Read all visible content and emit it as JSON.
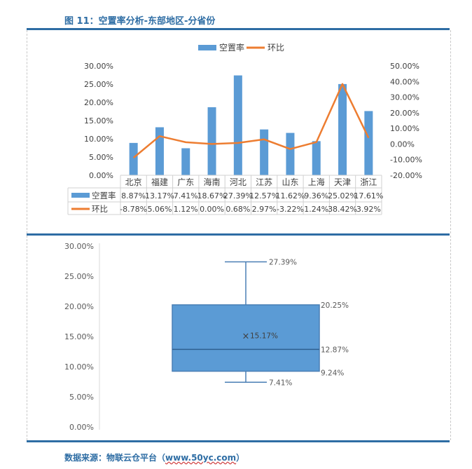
{
  "figure": {
    "title": "图 11：空置率分析-东部地区-分省份",
    "source_prefix": "数据来源：物联云仓平台（",
    "source_url": "www.50yc.com",
    "source_suffix": "）"
  },
  "colors": {
    "bar": "#5b9bd5",
    "line": "#ed7d31",
    "accent": "#2e6da4"
  },
  "chart_data": [
    {
      "type": "bar",
      "categories": [
        "北京",
        "福建",
        "广东",
        "海南",
        "河北",
        "江苏",
        "山东",
        "上海",
        "天津",
        "浙江"
      ],
      "series": [
        {
          "name": "空置率",
          "type": "bar",
          "axis": "left",
          "values": [
            8.87,
            13.17,
            7.41,
            18.67,
            27.39,
            12.57,
            11.62,
            9.36,
            25.02,
            17.61
          ],
          "labels": [
            "8.87%",
            "13.17%",
            "7.41%",
            "18.67%",
            "27.39%",
            "12.57%",
            "11.62%",
            "9.36%",
            "25.02%",
            "17.61%"
          ]
        },
        {
          "name": "环比",
          "type": "line",
          "axis": "right",
          "values": [
            -8.78,
            5.06,
            1.12,
            0.0,
            0.68,
            2.97,
            -3.22,
            1.24,
            38.42,
            3.92
          ],
          "labels": [
            "-8.78%",
            "5.06%",
            "1.12%",
            "0.00%",
            "0.68%",
            "2.97%",
            "-3.22%",
            "1.24%",
            "38.42%",
            "3.92%"
          ]
        }
      ],
      "ylim_left": [
        0,
        30
      ],
      "yticks_left": [
        "0.00%",
        "5.00%",
        "10.00%",
        "15.00%",
        "20.00%",
        "25.00%",
        "30.00%"
      ],
      "ylim_right": [
        -20,
        50
      ],
      "yticks_right": [
        "-20.00%",
        "-10.00%",
        "0.00%",
        "10.00%",
        "20.00%",
        "30.00%",
        "40.00%",
        "50.00%"
      ],
      "legend": "top",
      "data_table": true
    },
    {
      "type": "box",
      "ylim": [
        0,
        30
      ],
      "yticks": [
        "0.00%",
        "5.00%",
        "10.00%",
        "15.00%",
        "20.00%",
        "25.00%",
        "30.00%"
      ],
      "min": 7.41,
      "q1": 9.24,
      "median": 12.87,
      "mean": 15.17,
      "q3": 20.25,
      "max": 27.39,
      "labels": {
        "min": "7.41%",
        "q1": "9.24%",
        "median": "12.87%",
        "mean": "15.17%",
        "q3": "20.25%",
        "max": "27.39%"
      },
      "mean_marker": "×"
    }
  ]
}
